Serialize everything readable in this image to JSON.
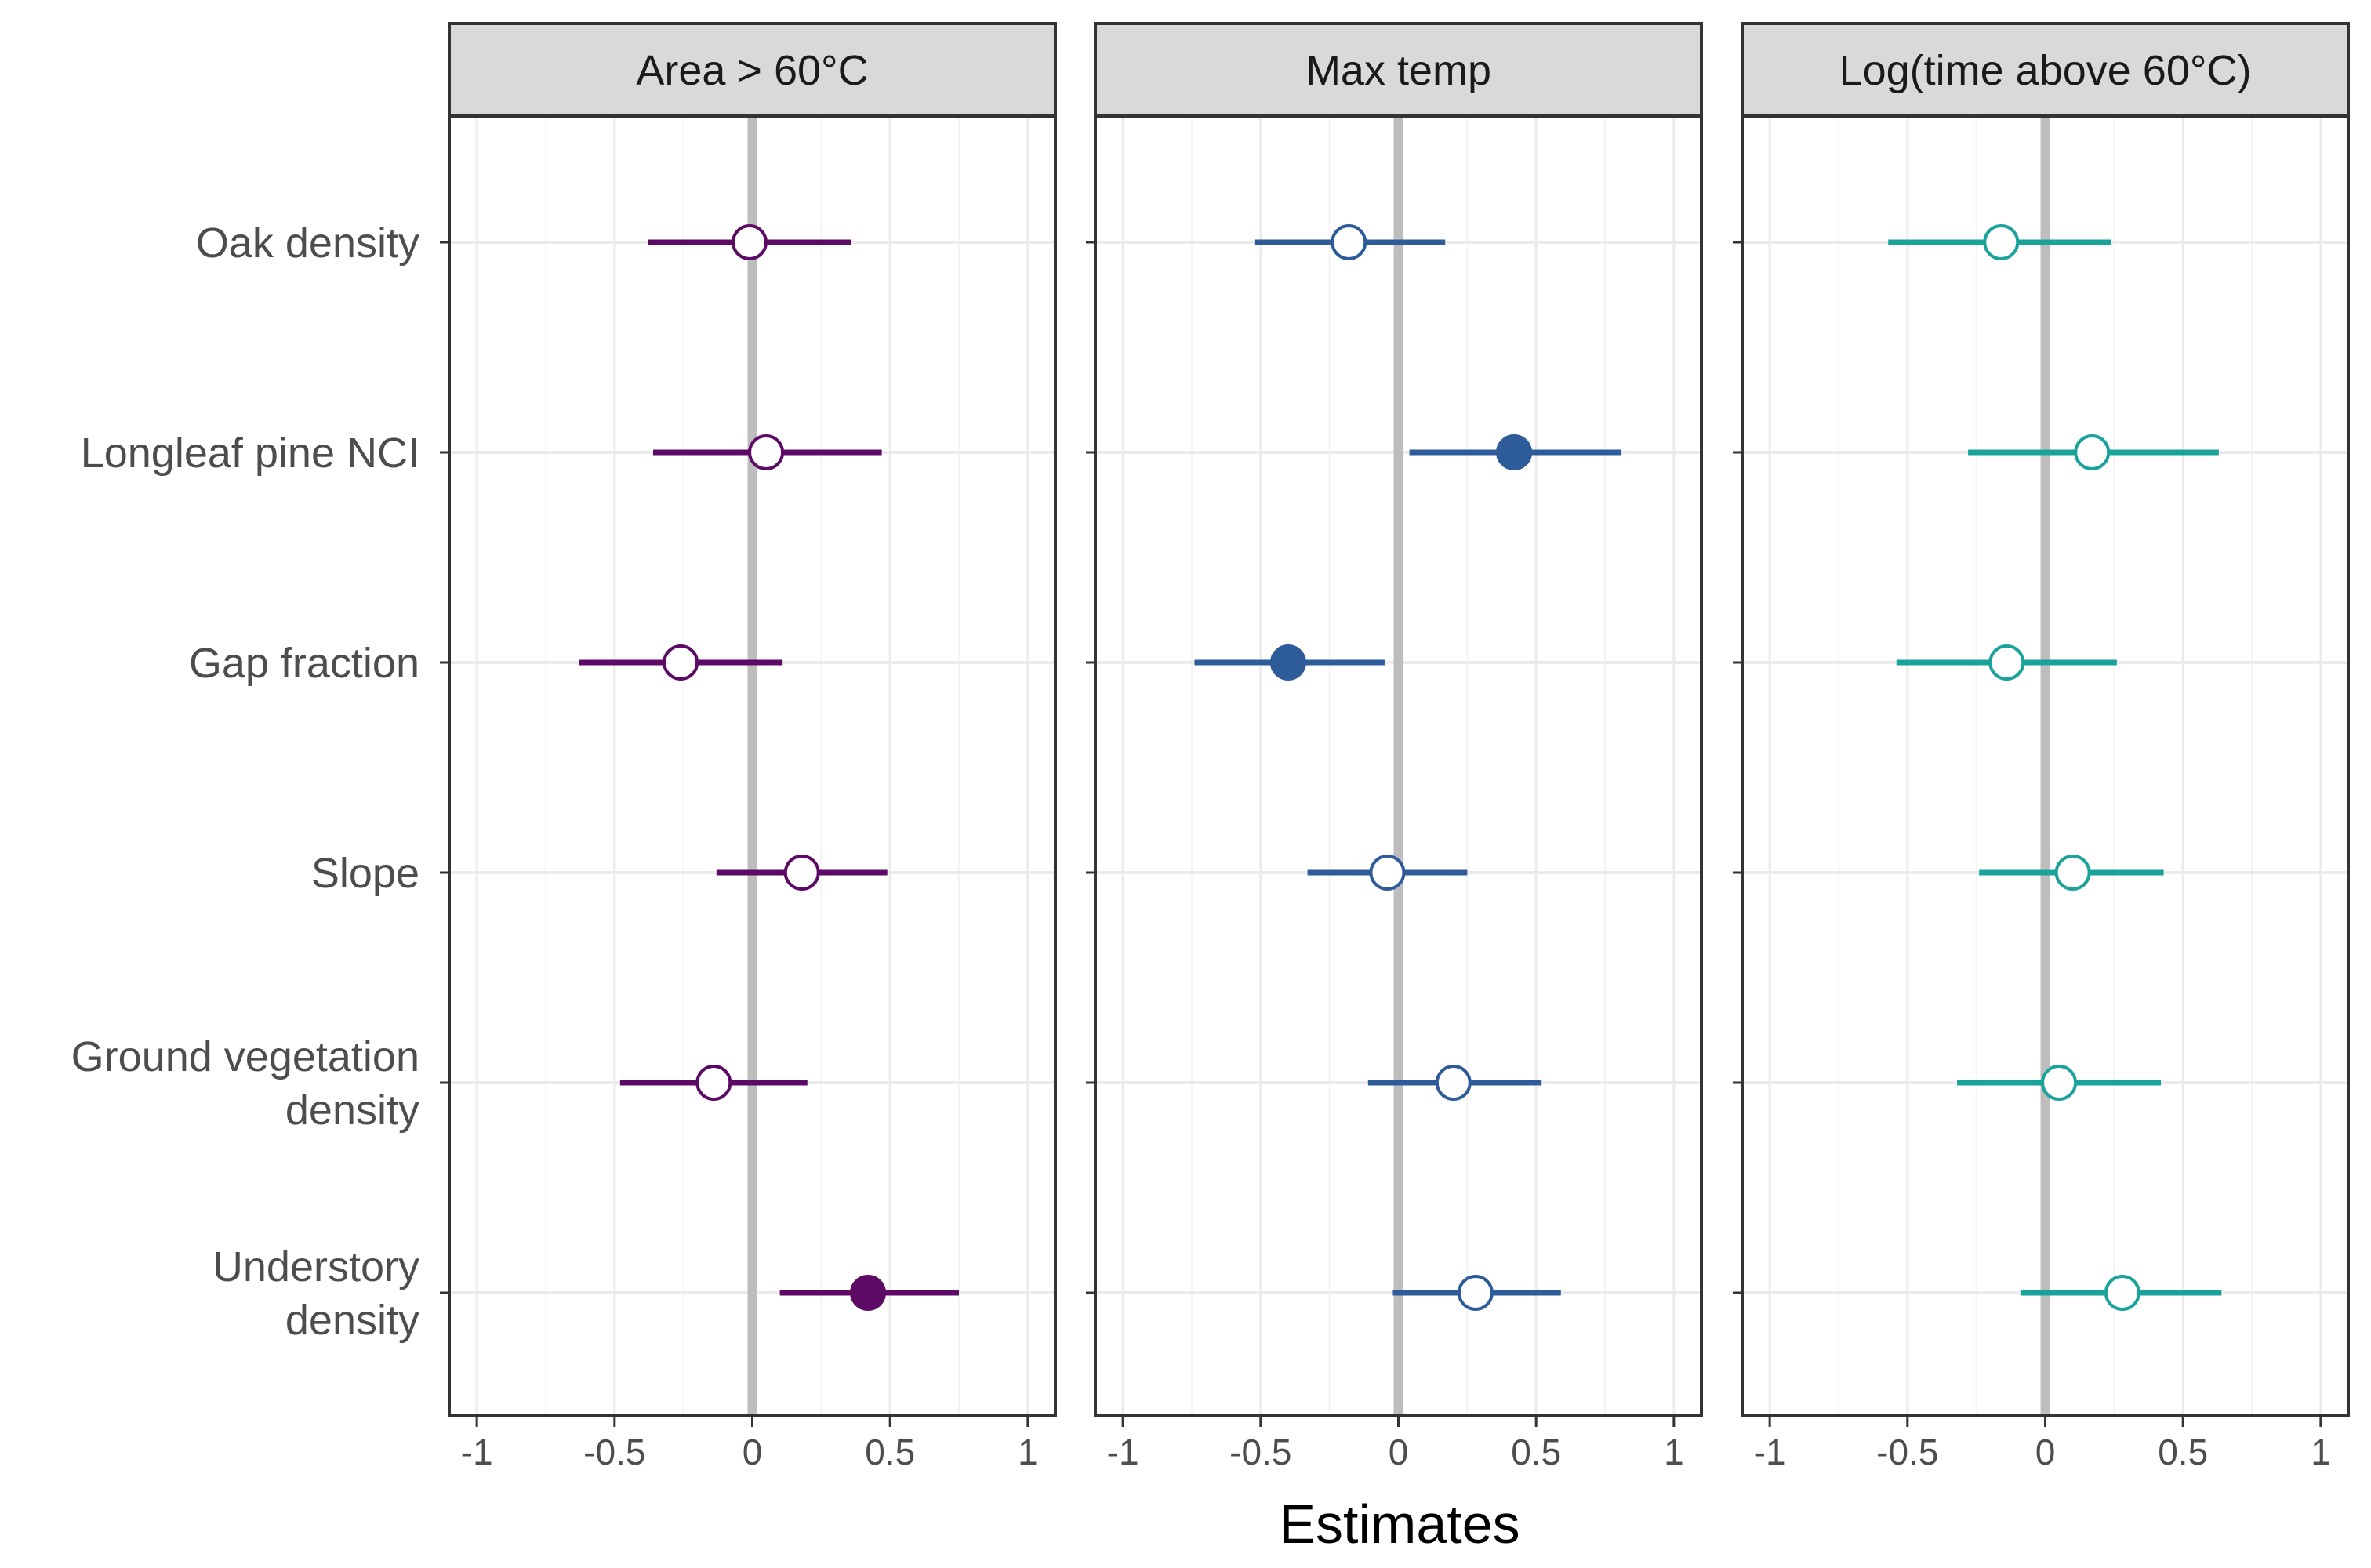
{
  "chart_data": {
    "type": "forest-plot",
    "xlabel": "Estimates",
    "xlim": [
      -1.1,
      1.1
    ],
    "x_ticks": [
      -1,
      -0.5,
      0,
      0.5,
      1
    ],
    "x_tick_labels": [
      "-1",
      "-0.5",
      "0",
      "0.5",
      "1"
    ],
    "categories": [
      [
        "Oak density"
      ],
      [
        "Longleaf pine NCI"
      ],
      [
        "Gap fraction"
      ],
      [
        "Slope"
      ],
      [
        "Ground vegetation",
        "density"
      ],
      [
        "Understory",
        "density"
      ]
    ],
    "panels": [
      {
        "title": "Area > 60°C",
        "color": "#5c0a66",
        "estimates": [
          {
            "estimate": -0.01,
            "low": -0.38,
            "high": 0.36,
            "significant": false
          },
          {
            "estimate": 0.05,
            "low": -0.36,
            "high": 0.47,
            "significant": false
          },
          {
            "estimate": -0.26,
            "low": -0.63,
            "high": 0.11,
            "significant": false
          },
          {
            "estimate": 0.18,
            "low": -0.13,
            "high": 0.49,
            "significant": false
          },
          {
            "estimate": -0.14,
            "low": -0.48,
            "high": 0.2,
            "significant": false
          },
          {
            "estimate": 0.42,
            "low": 0.1,
            "high": 0.75,
            "significant": true
          }
        ]
      },
      {
        "title": "Max temp",
        "color": "#2e5c9a",
        "estimates": [
          {
            "estimate": -0.18,
            "low": -0.52,
            "high": 0.17,
            "significant": false
          },
          {
            "estimate": 0.42,
            "low": 0.04,
            "high": 0.81,
            "significant": true
          },
          {
            "estimate": -0.4,
            "low": -0.74,
            "high": -0.05,
            "significant": true
          },
          {
            "estimate": -0.04,
            "low": -0.33,
            "high": 0.25,
            "significant": false
          },
          {
            "estimate": 0.2,
            "low": -0.11,
            "high": 0.52,
            "significant": false
          },
          {
            "estimate": 0.28,
            "low": -0.02,
            "high": 0.59,
            "significant": false
          }
        ]
      },
      {
        "title": "Log(time above 60°C)",
        "color": "#1aa39a",
        "estimates": [
          {
            "estimate": -0.16,
            "low": -0.57,
            "high": 0.24,
            "significant": false
          },
          {
            "estimate": 0.17,
            "low": -0.28,
            "high": 0.63,
            "significant": false
          },
          {
            "estimate": -0.14,
            "low": -0.54,
            "high": 0.26,
            "significant": false
          },
          {
            "estimate": 0.1,
            "low": -0.24,
            "high": 0.43,
            "significant": false
          },
          {
            "estimate": 0.05,
            "low": -0.32,
            "high": 0.42,
            "significant": false
          },
          {
            "estimate": 0.28,
            "low": -0.09,
            "high": 0.64,
            "significant": false
          }
        ]
      }
    ]
  }
}
